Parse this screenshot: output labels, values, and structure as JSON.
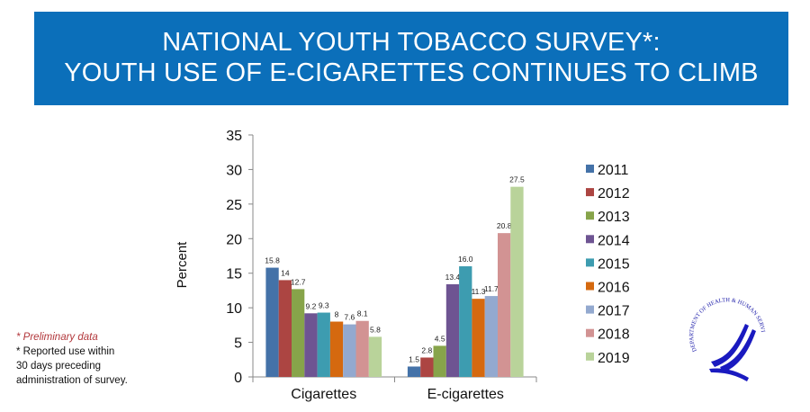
{
  "banner": {
    "line1": "NATIONAL YOUTH TOBACCO SURVEY*:",
    "line2": "YOUTH USE OF E-CIGARETTES CONTINUES TO CLIMB",
    "color": "#0b6fba"
  },
  "notes": {
    "preliminary": "*   Preliminary data",
    "reported_line1": "*    Reported use within",
    "reported_line2": "30 days preceding",
    "reported_line3": "administration of survey."
  },
  "seal": {
    "text": "DEPARTMENT OF HEALTH & HUMAN SERVICES · USA",
    "icon": "hhs-eagle-seal"
  },
  "chart_data": {
    "type": "bar",
    "title": "",
    "xlabel": "",
    "ylabel": "Percent",
    "ylim": [
      0,
      35
    ],
    "yticks": [
      "0",
      "5",
      "10",
      "15",
      "20",
      "25",
      "30",
      "35"
    ],
    "grid": false,
    "legend_position": "right",
    "categories": [
      "Cigarettes",
      "E-cigarettes"
    ],
    "series": [
      {
        "name": "2011",
        "color": "#4472a8",
        "values": [
          15.8,
          1.5
        ],
        "labels": [
          "15.8",
          "1.5"
        ]
      },
      {
        "name": "2012",
        "color": "#ac4542",
        "values": [
          14,
          2.8
        ],
        "labels": [
          "14",
          "2.8"
        ]
      },
      {
        "name": "2013",
        "color": "#87a44a",
        "values": [
          12.7,
          4.5
        ],
        "labels": [
          "12.7",
          "4.5"
        ]
      },
      {
        "name": "2014",
        "color": "#6e5492",
        "values": [
          9.2,
          13.4
        ],
        "labels": [
          "9.2",
          "13.4"
        ]
      },
      {
        "name": "2015",
        "color": "#3d9cb0",
        "values": [
          9.3,
          16.0
        ],
        "labels": [
          "9.3",
          "16.0"
        ]
      },
      {
        "name": "2016",
        "color": "#d5690f",
        "values": [
          8,
          11.3
        ],
        "labels": [
          "8",
          "11.3"
        ]
      },
      {
        "name": "2017",
        "color": "#93a9cf",
        "values": [
          7.6,
          11.7
        ],
        "labels": [
          "7.6",
          "11.7"
        ]
      },
      {
        "name": "2018",
        "color": "#d29393",
        "values": [
          8.1,
          20.8
        ],
        "labels": [
          "8.1",
          "20.8"
        ]
      },
      {
        "name": "2019",
        "color": "#b9d39a",
        "values": [
          5.8,
          27.5
        ],
        "labels": [
          "5.8",
          "27.5"
        ]
      }
    ]
  }
}
